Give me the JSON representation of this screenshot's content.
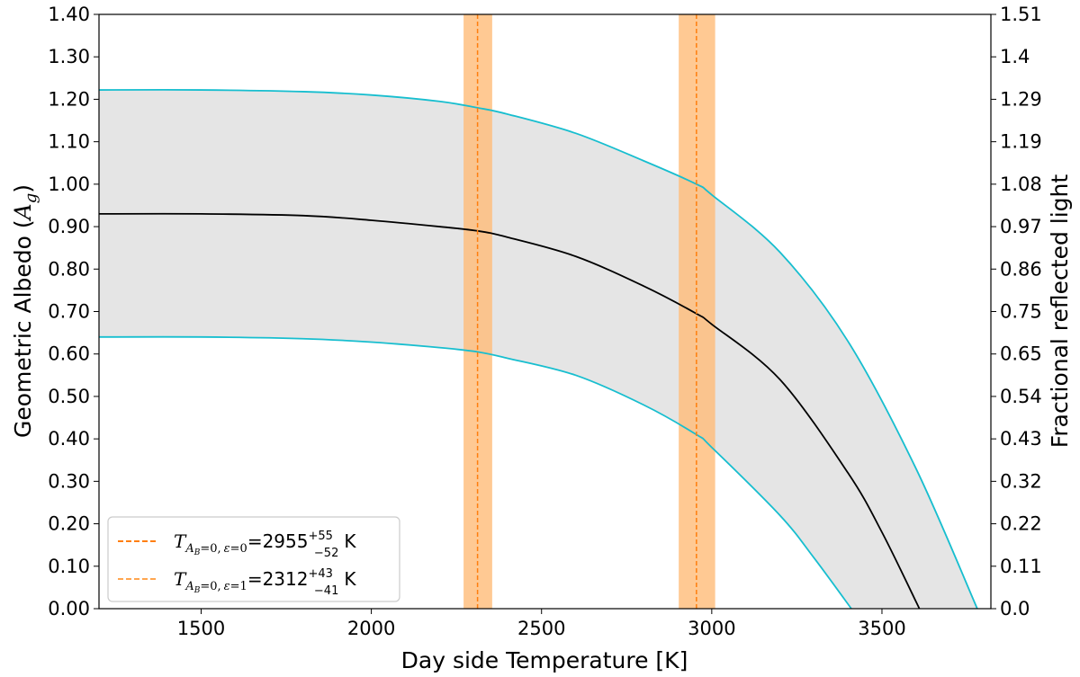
{
  "chart_data": {
    "type": "line",
    "xlabel": "Day side Temperature [K]",
    "ylabel_left": "Geometric Albedo (A_g)",
    "ylabel_left_parts": {
      "main": "Geometric Albedo (",
      "var": "A",
      "sub": "g",
      "end": ")"
    },
    "ylabel_right": "Fractional reflected light",
    "xlim": [
      1200,
      3820
    ],
    "ylim": [
      0,
      1.4
    ],
    "x_ticks": [
      1500,
      2000,
      2500,
      3000,
      3500
    ],
    "x_tick_labels": [
      "1500",
      "2000",
      "2500",
      "3000",
      "3500"
    ],
    "y_ticks_left": [
      0,
      0.1,
      0.2,
      0.3,
      0.4,
      0.5,
      0.6,
      0.7,
      0.8,
      0.9,
      1.0,
      1.1,
      1.2,
      1.3,
      1.4
    ],
    "y_tick_labels_left": [
      "0.00",
      "0.10",
      "0.20",
      "0.30",
      "0.40",
      "0.50",
      "0.60",
      "0.70",
      "0.80",
      "0.90",
      "1.00",
      "1.10",
      "1.20",
      "1.30",
      "1.40"
    ],
    "y_tick_labels_right": [
      "0.0",
      "0.11",
      "0.22",
      "0.32",
      "0.43",
      "0.54",
      "0.65",
      "0.75",
      "0.86",
      "0.97",
      "1.08",
      "1.19",
      "1.29",
      "1.4",
      "1.51"
    ],
    "grid": false,
    "legend_position": "lower-left",
    "series": [
      {
        "kind": "central",
        "color": "#000000",
        "x": [
          1200,
          1500,
          1800,
          2000,
          2200,
          2312,
          2400,
          2600,
          2800,
          2955,
          3000,
          3200,
          3400,
          3500,
          3610
        ],
        "y": [
          0.93,
          0.93,
          0.926,
          0.915,
          0.9,
          0.89,
          0.875,
          0.83,
          0.76,
          0.695,
          0.67,
          0.54,
          0.32,
          0.18,
          0.0
        ]
      },
      {
        "kind": "upper",
        "color": "#17becf",
        "x": [
          1200,
          1500,
          1800,
          2000,
          2200,
          2312,
          2400,
          2600,
          2800,
          2955,
          3000,
          3200,
          3400,
          3600,
          3780
        ],
        "y": [
          1.222,
          1.222,
          1.218,
          1.21,
          1.195,
          1.18,
          1.165,
          1.12,
          1.055,
          1.0,
          0.975,
          0.84,
          0.63,
          0.33,
          0.0
        ]
      },
      {
        "kind": "lower",
        "color": "#17becf",
        "x": [
          1200,
          1500,
          1800,
          2000,
          2200,
          2312,
          2400,
          2600,
          2800,
          2955,
          3000,
          3200,
          3300,
          3410
        ],
        "y": [
          0.64,
          0.64,
          0.636,
          0.628,
          0.615,
          0.605,
          0.59,
          0.55,
          0.48,
          0.41,
          0.38,
          0.22,
          0.12,
          0.0
        ]
      }
    ],
    "band_fill_color": "#e5e5e5",
    "vertical_bands": [
      {
        "center": 2955,
        "low": 2903,
        "high": 3010,
        "line_color": "#ff7f0e",
        "fill_color": "#ffbb78"
      },
      {
        "center": 2312,
        "low": 2271,
        "high": 2355,
        "line_color": "#ff7f0e",
        "fill_color": "#ffbb78"
      }
    ],
    "legend": [
      {
        "sub": "A_B=0, ε=0",
        "value": "2955",
        "sup": "+55",
        "low": "−52",
        "unit": "K",
        "sym": "T",
        "sub_main": "A",
        "sub_small": "B",
        "sub_rest": "=0,",
        "sub_eps": "ε",
        "sub_eq": "=0",
        "eq": "=2955",
        "line_color": "#ff7f0e"
      },
      {
        "sub": "A_B=0, ε=1",
        "value": "2312",
        "sup": "+43",
        "low": "−41",
        "unit": "K",
        "sym": "T",
        "sub_main": "A",
        "sub_small": "B",
        "sub_rest": "=0,",
        "sub_eps": "ε",
        "sub_eq": "=1",
        "eq": "=2312",
        "line_color": "#ffa54f"
      }
    ]
  }
}
